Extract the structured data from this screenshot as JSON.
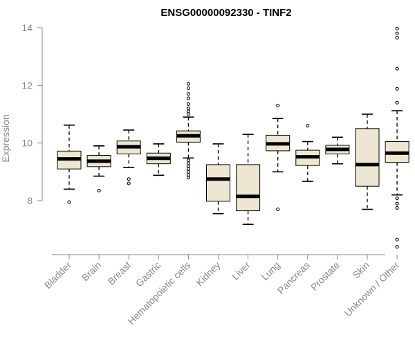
{
  "chart_data": {
    "type": "boxplot",
    "title": "ENSG00000092330 - TINF2",
    "xlabel": "",
    "ylabel": "Expression",
    "ylim": [
      6.2,
      14.2
    ],
    "yticks": [
      8,
      10,
      12,
      14
    ],
    "grid": false,
    "box_color": "#ede7d1",
    "categories": [
      "Bladder",
      "Brain",
      "Breast",
      "Gastric",
      "Hematopoietic cells",
      "Kidney",
      "Liver",
      "Lung",
      "Pancreas",
      "Prostate",
      "Skin",
      "Unknown / Other"
    ],
    "boxes": [
      {
        "min": 8.4,
        "q1": 9.1,
        "median": 9.45,
        "q3": 9.72,
        "max": 10.62,
        "outliers": [
          7.95
        ]
      },
      {
        "min": 8.85,
        "q1": 9.18,
        "median": 9.37,
        "q3": 9.57,
        "max": 9.9,
        "outliers": [
          8.35
        ]
      },
      {
        "min": 9.15,
        "q1": 9.62,
        "median": 9.87,
        "q3": 10.07,
        "max": 10.45,
        "outliers": [
          8.6,
          8.75
        ]
      },
      {
        "min": 8.88,
        "q1": 9.28,
        "median": 9.47,
        "q3": 9.65,
        "max": 9.97,
        "outliers": []
      },
      {
        "min": 9.48,
        "q1": 10.03,
        "median": 10.25,
        "q3": 10.42,
        "max": 10.9,
        "outliers": [
          12.05,
          11.9,
          11.7,
          11.55,
          11.35,
          11.2,
          11.1,
          11.0,
          9.4,
          9.3,
          9.2,
          9.1,
          9.0,
          8.9,
          8.8
        ]
      },
      {
        "min": 7.55,
        "q1": 7.98,
        "median": 8.75,
        "q3": 9.25,
        "max": 9.97,
        "outliers": []
      },
      {
        "min": 7.18,
        "q1": 7.65,
        "median": 8.15,
        "q3": 9.25,
        "max": 10.3,
        "outliers": []
      },
      {
        "min": 9.0,
        "q1": 9.73,
        "median": 9.97,
        "q3": 10.27,
        "max": 10.85,
        "outliers": [
          11.3,
          7.7
        ]
      },
      {
        "min": 8.67,
        "q1": 9.22,
        "median": 9.52,
        "q3": 9.75,
        "max": 10.05,
        "outliers": [
          10.6
        ]
      },
      {
        "min": 9.28,
        "q1": 9.62,
        "median": 9.78,
        "q3": 9.92,
        "max": 10.2,
        "outliers": []
      },
      {
        "min": 7.7,
        "q1": 8.5,
        "median": 9.25,
        "q3": 10.5,
        "max": 11.0,
        "outliers": []
      },
      {
        "min": 8.2,
        "q1": 9.33,
        "median": 9.65,
        "q3": 10.05,
        "max": 11.12,
        "outliers": [
          13.97,
          13.8,
          13.65,
          12.58,
          11.88,
          11.4,
          8.08,
          7.9,
          7.75,
          6.65,
          6.4
        ]
      }
    ]
  }
}
